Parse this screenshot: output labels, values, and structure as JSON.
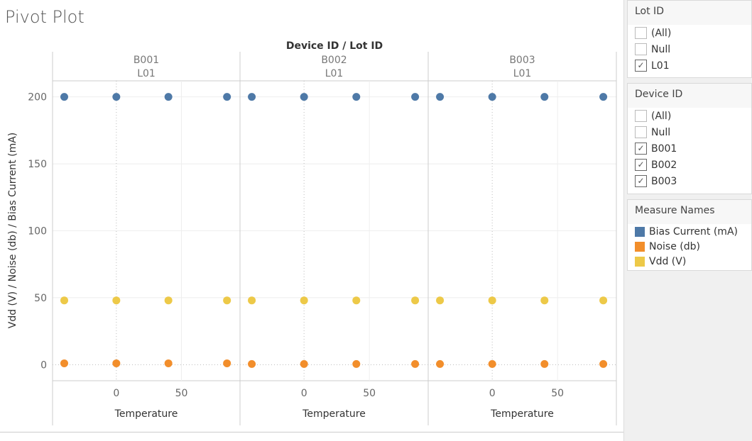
{
  "title": "Pivot Plot",
  "chart_data": {
    "type": "scatter",
    "column_header_title": "Device ID  /  Lot ID",
    "panels": [
      {
        "device": "B001",
        "lot": "L01",
        "series": [
          {
            "name": "Bias Current (mA)",
            "x": [
              -40,
              0,
              40,
              85
            ],
            "y": [
              200,
              200,
              200,
              200
            ]
          },
          {
            "name": "Noise (db)",
            "x": [
              -40,
              0,
              40,
              85
            ],
            "y": [
              1,
              1,
              1,
              1
            ]
          },
          {
            "name": "Vdd (V)",
            "x": [
              -40,
              0,
              40,
              85
            ],
            "y": [
              48,
              48,
              48,
              48
            ]
          }
        ]
      },
      {
        "device": "B002",
        "lot": "L01",
        "series": [
          {
            "name": "Bias Current (mA)",
            "x": [
              -40,
              0,
              40,
              85
            ],
            "y": [
              200,
              200,
              200,
              200
            ]
          },
          {
            "name": "Noise (db)",
            "x": [
              -40,
              0,
              40,
              85
            ],
            "y": [
              0.5,
              0.5,
              0.5,
              0.5
            ]
          },
          {
            "name": "Vdd (V)",
            "x": [
              -40,
              0,
              40,
              85
            ],
            "y": [
              48,
              48,
              48,
              48
            ]
          }
        ]
      },
      {
        "device": "B003",
        "lot": "L01",
        "series": [
          {
            "name": "Bias Current (mA)",
            "x": [
              -40,
              0,
              40,
              85
            ],
            "y": [
              200,
              200,
              200,
              200
            ]
          },
          {
            "name": "Noise (db)",
            "x": [
              -40,
              0,
              40,
              85
            ],
            "y": [
              0.5,
              0.5,
              0.5,
              0.5
            ]
          },
          {
            "name": "Vdd (V)",
            "x": [
              -40,
              0,
              40,
              85
            ],
            "y": [
              48,
              48,
              48,
              48
            ]
          }
        ]
      }
    ],
    "xlabel": "Temperature",
    "ylabel": "Vdd (V) / Noise (db) / Bias Current (mA)",
    "xticks": [
      0,
      50
    ],
    "yticks": [
      0,
      50,
      100,
      150,
      200
    ],
    "xlim": [
      -49,
      95
    ],
    "ylim": [
      -12,
      212
    ],
    "colors": {
      "Bias Current (mA)": "#4e79a7",
      "Noise (db)": "#f28e2b",
      "Vdd (V)": "#edc948"
    }
  },
  "filters": [
    {
      "title": "Lot ID",
      "items": [
        {
          "label": "(All)",
          "checked": false
        },
        {
          "label": "Null",
          "checked": false
        },
        {
          "label": "L01",
          "checked": true
        }
      ]
    },
    {
      "title": "Device ID",
      "items": [
        {
          "label": "(All)",
          "checked": false
        },
        {
          "label": "Null",
          "checked": false
        },
        {
          "label": "B001",
          "checked": true
        },
        {
          "label": "B002",
          "checked": true
        },
        {
          "label": "B003",
          "checked": true
        }
      ]
    }
  ],
  "legend": {
    "title": "Measure Names",
    "items": [
      {
        "label": "Bias Current (mA)",
        "color": "#4e79a7"
      },
      {
        "label": "Noise (db)",
        "color": "#f28e2b"
      },
      {
        "label": "Vdd (V)",
        "color": "#edc948"
      }
    ]
  }
}
